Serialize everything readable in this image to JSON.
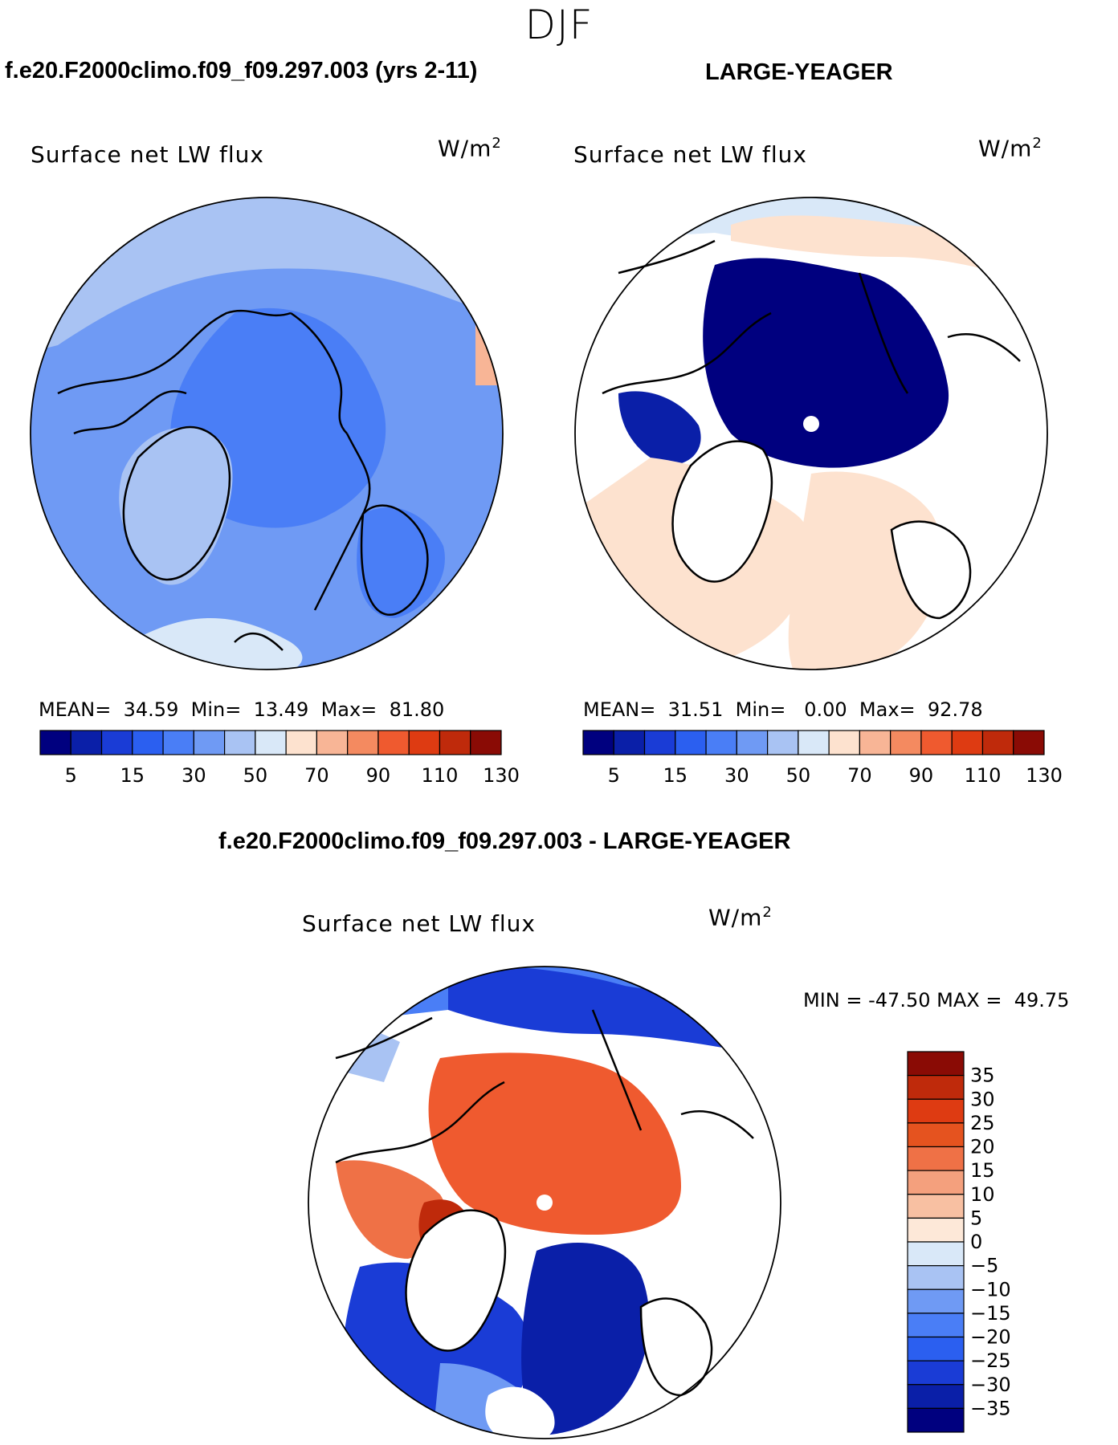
{
  "season": "DJF",
  "panels": [
    {
      "title": "f.e20.F2000climo.f09_f09.297.003 (yrs 2-11)",
      "label": "Surface net LW flux",
      "units": "W/m",
      "units_sup": "2",
      "stats": {
        "mean_label": "MEAN=",
        "mean": "34.59",
        "min_label": "Min=",
        "min": "13.49",
        "max_label": "Max=",
        "max": "81.80"
      },
      "field_description": "mostly blue, 20-50 W/m2 over Arctic, lighter over Greenland/Atlantic"
    },
    {
      "title": "LARGE-YEAGER",
      "label": "Surface net LW flux",
      "units": "W/m",
      "units_sup": "2",
      "stats": {
        "mean_label": "MEAN=",
        "mean": "31.51",
        "min_label": "Min=",
        "min": "0.00",
        "max_label": "Max=",
        "max": "92.78"
      },
      "field_description": "dark blue over ice-covered Arctic Ocean, orange/peach over North Atlantic and Eurasia, white over land"
    },
    {
      "title": "f.e20.F2000climo.f09_f09.297.003 - LARGE-YEAGER",
      "label": "Surface net LW flux",
      "units": "W/m",
      "units_sup": "2",
      "stats": {
        "min_label": "MIN =",
        "min": "-47.50",
        "max_label": "MAX =",
        "max": "49.75"
      }
    }
  ],
  "colorbar_abs": {
    "colors": [
      "#00007f",
      "#0a1fa8",
      "#1a3cd6",
      "#2b5ff0",
      "#4a7ef6",
      "#6f9af4",
      "#a9c3f3",
      "#d9e8f8",
      "#fde2cf",
      "#f8b596",
      "#f48a60",
      "#ef5a2f",
      "#de3b12",
      "#bf2a0b",
      "#8a0b05"
    ],
    "labels": [
      "5",
      "15",
      "30",
      "50",
      "70",
      "90",
      "110",
      "130"
    ]
  },
  "colorbar_diff": {
    "colors": [
      "#00007f",
      "#0a1fa8",
      "#1a3cd6",
      "#2b5ff0",
      "#4a7ef6",
      "#6f9af4",
      "#a9c3f3",
      "#d9e8f8",
      "#fde8d8",
      "#f8c0a2",
      "#f4a07d",
      "#ef7146",
      "#e5531f",
      "#de3b12",
      "#bf2a0b",
      "#8a0b05"
    ],
    "labels": [
      "35",
      "30",
      "25",
      "20",
      "15",
      "10",
      "5",
      "0",
      "−5",
      "−10",
      "−15",
      "−20",
      "−25",
      "−30",
      "−35"
    ]
  },
  "map_colors": {
    "land": "#ffffff",
    "coast": "#000000",
    "pole": "#ffffff"
  }
}
